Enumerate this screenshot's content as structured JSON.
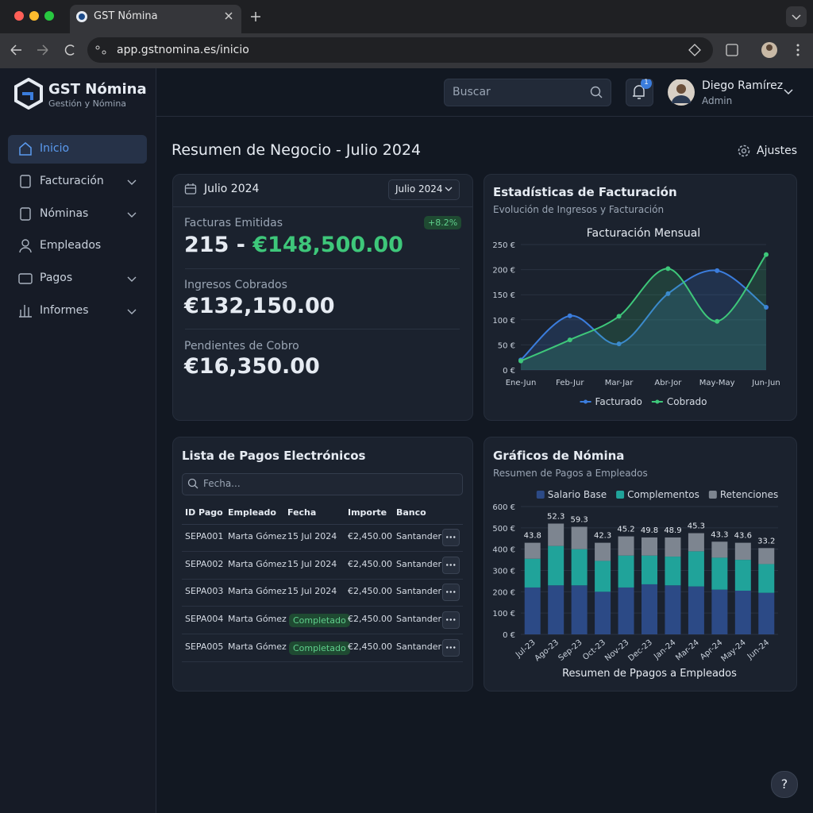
{
  "browser": {
    "tab_title": "GST Nómina",
    "url": "app.gstnomina.es/inicio"
  },
  "sidebar": {
    "brand": "GST Nómina",
    "tagline": "Gestión y Nómina",
    "nav": [
      "Inicio",
      "Facturación",
      "Nóminas",
      "Empleados",
      "Pagos",
      "Informes"
    ]
  },
  "header": {
    "search_placeholder": "Buscar",
    "notification_count": 1,
    "user_name": "Diego Ramírez",
    "user_role": "Admin"
  },
  "page": {
    "title": "Resumen de Negocio - Julio 2024",
    "settings": "Ajustes",
    "help": "?"
  },
  "summary": {
    "period": "Julio 2024",
    "period_select": "Julio 2024",
    "items": [
      {
        "label": "Facturas Emitidas",
        "badge": "+8.2%",
        "count": "215 -",
        "amount": "€148,500.00"
      },
      {
        "label": "Ingresos Cobrados",
        "amount": "€132,150.00"
      },
      {
        "label": "Pendientes de Cobro",
        "amount": "€16,350.00"
      }
    ]
  },
  "payments": {
    "title": "Lista de Pagos Electrónicos",
    "search_placeholder": "Fecha...",
    "headers": [
      "ID Pago",
      "Empleado",
      "Fecha",
      "Importe",
      "Banco"
    ],
    "rows": [
      {
        "id": "SEPA001",
        "empleado": "Marta Gómez",
        "fecha": "15 Jul 2024",
        "importe": "€2,450.00",
        "banco": "Santander"
      },
      {
        "id": "SEPA002",
        "empleado": "Marta Gómez",
        "fecha": "15 Jul 2024",
        "importe": "€2,450.00",
        "banco": "Santander"
      },
      {
        "id": "SEPA003",
        "empleado": "Marta Gómez",
        "fecha": "15 Jul 2024",
        "importe": "€2,450.00",
        "banco": "Santander"
      },
      {
        "id": "SEPA004",
        "empleado": "Marta Gómez",
        "estado": "Completado",
        "importe": "€2,450.00",
        "banco": "Santander"
      },
      {
        "id": "SEPA005",
        "empleado": "Marta Gómez",
        "estado": "Completado",
        "importe": "€2,450.00",
        "banco": "Santander"
      }
    ]
  },
  "chart_data": [
    {
      "type": "line",
      "title": "Estadísticas de Facturación",
      "subtitle": "Evolución de Ingresos y Facturación",
      "chart_title": "Facturación Mensual",
      "categories": [
        "Ene-Jun",
        "Feb-Jur",
        "Mar-Jar",
        "Abr-Jor",
        "May-May",
        "Jun-Jun"
      ],
      "series": [
        {
          "name": "Facturado",
          "color": "#3b7ddd",
          "values": [
            20,
            108,
            52,
            152,
            198,
            125
          ]
        },
        {
          "name": "Cobrado",
          "color": "#3ec77a",
          "values": [
            18,
            60,
            107,
            202,
            97,
            230
          ]
        }
      ],
      "ylim": [
        0,
        250
      ],
      "yticks": [
        {
          "value": 0,
          "label": "0 €"
        },
        {
          "value": 50,
          "label": "50 €"
        },
        {
          "value": 100,
          "label": "100 €"
        },
        {
          "value": 150,
          "label": "150 €"
        },
        {
          "value": 200,
          "label": "200 €"
        },
        {
          "value": 250,
          "label": "250 €"
        }
      ],
      "grid": true,
      "legend": "bottom"
    },
    {
      "type": "stacked_bar",
      "title": "Gráficos de Nómina",
      "subtitle": "Resumen de Pagos a Empleados",
      "x_label": "Resumen de Ppagos a Empleados",
      "categories": [
        "Jul-23",
        "Ago-23",
        "Sep-23",
        "Oct-23",
        "Nov-23",
        "Dec-23",
        "Jan-24",
        "Mar-24",
        "Apr-24",
        "May-24",
        "Jun-24"
      ],
      "series": [
        {
          "name": "Salario Base",
          "color": "#2c4a86",
          "values": [
            220,
            230,
            230,
            200,
            220,
            235,
            230,
            225,
            210,
            205,
            195
          ]
        },
        {
          "name": "Complementos",
          "color": "#20a39a",
          "values": [
            135,
            185,
            170,
            145,
            150,
            135,
            135,
            165,
            150,
            145,
            135
          ]
        },
        {
          "name": "Retenciones",
          "color": "#7d8590",
          "values": [
            75,
            105,
            105,
            85,
            90,
            85,
            90,
            85,
            75,
            80,
            75
          ]
        }
      ],
      "stack_labels": [
        "43.8",
        "52.3",
        "59.3",
        "42.3",
        "45.2",
        "49.8",
        "48.9",
        "45.3",
        "43.3",
        "43.6",
        "33.2"
      ],
      "ylim": [
        0,
        600
      ],
      "yticks": [
        {
          "value": 0,
          "label": "0 €"
        },
        {
          "value": 100,
          "label": "100 €"
        },
        {
          "value": 200,
          "label": "200 €"
        },
        {
          "value": 300,
          "label": "300 €"
        },
        {
          "value": 400,
          "label": "400 €"
        },
        {
          "value": 500,
          "label": "500 €"
        },
        {
          "value": 600,
          "label": "600 €"
        }
      ],
      "grid": true,
      "legend": "top"
    }
  ]
}
